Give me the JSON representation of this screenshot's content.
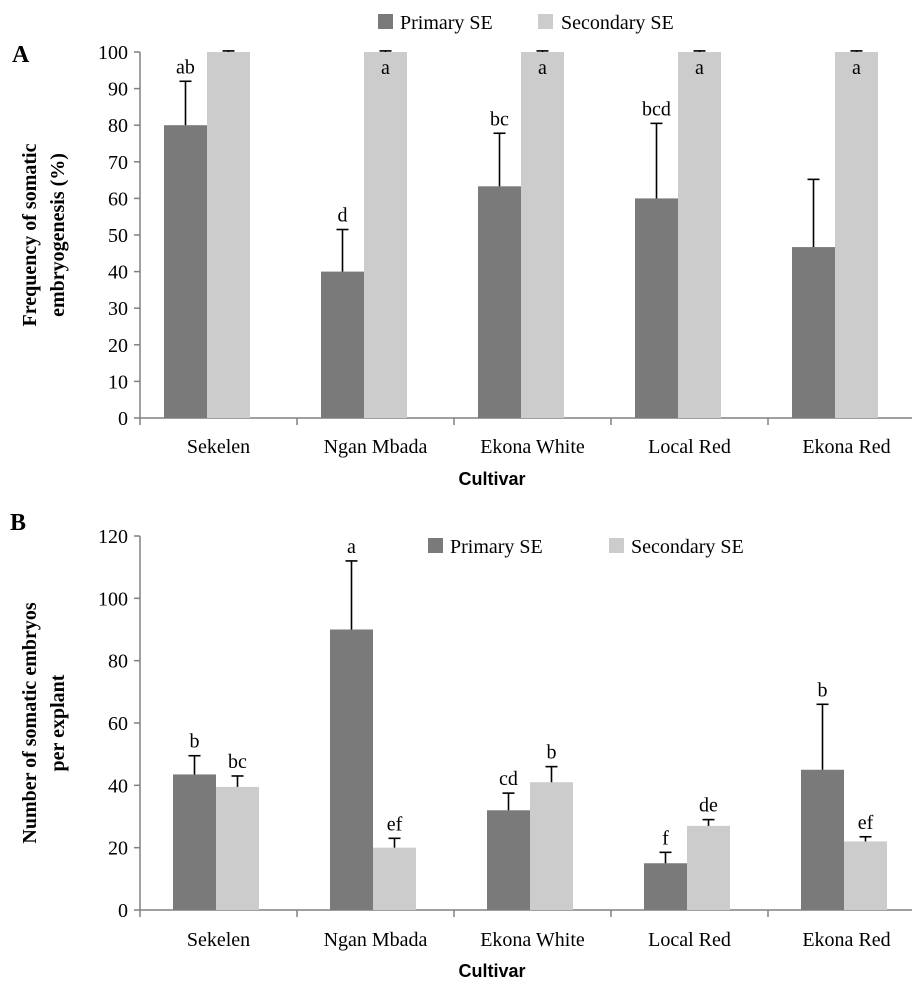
{
  "colors": {
    "primary": "#7a7a7a",
    "secondary": "#cccccc",
    "axis": "#808080",
    "text": "#000000"
  },
  "chart_data": [
    {
      "panel_label": "A",
      "type": "bar",
      "categories": [
        "Sekelen",
        "Ngan Mbada",
        "Ekona White",
        "Local Red",
        "Ekona Red"
      ],
      "series": [
        {
          "name": "Primary SE",
          "values": [
            80,
            40,
            63.3,
            60,
            46.7
          ],
          "errors": [
            12,
            11.5,
            14.5,
            20.5,
            18.5
          ],
          "letters": [
            "ab",
            "d",
            "bc",
            "bcd",
            ""
          ]
        },
        {
          "name": "Secondary SE",
          "values": [
            100,
            100,
            100,
            100,
            100
          ],
          "errors": [
            0.3,
            0.3,
            0.3,
            0.3,
            0.3
          ],
          "letters": [
            "",
            "a",
            "a",
            "a",
            "a"
          ]
        }
      ],
      "ylabel_lines": [
        "Frequency of somatic",
        "embryogenesis (%)"
      ],
      "xlabel": "Cultivar",
      "ylim": [
        0,
        100
      ],
      "yticks": [
        0,
        10,
        20,
        30,
        40,
        50,
        60,
        70,
        80,
        90,
        100
      ],
      "legend": "top-center",
      "grid": false
    },
    {
      "panel_label": "B",
      "type": "bar",
      "categories": [
        "Sekelen",
        "Ngan Mbada",
        "Ekona White",
        "Local Red",
        "Ekona Red"
      ],
      "series": [
        {
          "name": "Primary SE",
          "values": [
            43.5,
            90,
            32,
            15,
            45
          ],
          "errors": [
            6,
            22,
            5.5,
            3.5,
            21
          ],
          "letters": [
            "b",
            "a",
            "cd",
            "f",
            "b"
          ]
        },
        {
          "name": "Secondary SE",
          "values": [
            39.5,
            20,
            41,
            27,
            22
          ],
          "errors": [
            3.5,
            3,
            5,
            2,
            1.5
          ],
          "letters": [
            "bc",
            "ef",
            "b",
            "de",
            "ef"
          ]
        }
      ],
      "ylabel_lines": [
        "Number of somatic embryos",
        "per explant"
      ],
      "xlabel": "Cultivar",
      "ylim": [
        0,
        120
      ],
      "yticks": [
        0,
        20,
        40,
        60,
        80,
        100,
        120
      ],
      "legend": "top-right",
      "grid": false
    }
  ]
}
